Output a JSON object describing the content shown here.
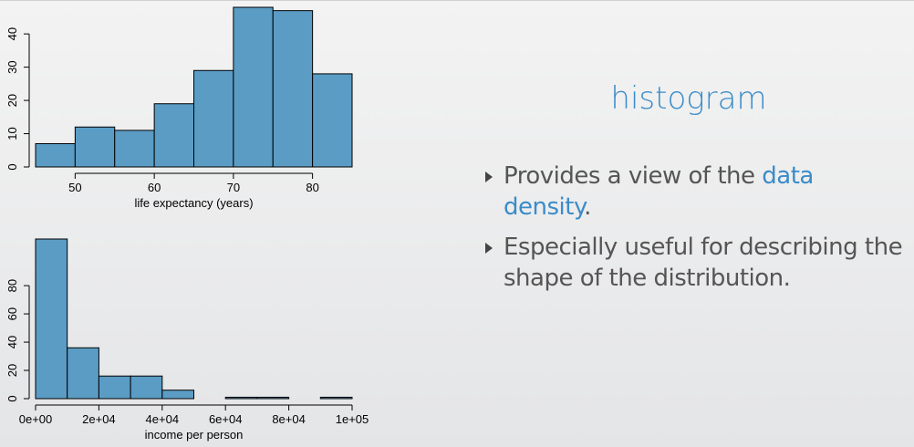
{
  "slide": {
    "title": "histogram",
    "bullets": [
      {
        "pre": "Provides a view of the ",
        "highlight": "data density",
        "post": "."
      },
      {
        "pre": "Especially useful for describing the shape of the distribution.",
        "highlight": "",
        "post": ""
      }
    ],
    "accent_color": "#3a8cc8"
  },
  "chart_data": [
    {
      "type": "bar",
      "xlabel": "life expectancy (years)",
      "ylabel": "",
      "bins": [
        [
          45,
          50
        ],
        [
          50,
          55
        ],
        [
          55,
          60
        ],
        [
          60,
          65
        ],
        [
          65,
          70
        ],
        [
          70,
          75
        ],
        [
          75,
          80
        ],
        [
          80,
          85
        ]
      ],
      "values": [
        7,
        12,
        11,
        19,
        29,
        48,
        47,
        28
      ],
      "xlim": [
        45,
        85
      ],
      "ylim": [
        0,
        48
      ],
      "xticks": [
        50,
        60,
        70,
        80
      ],
      "xtick_labels": [
        "50",
        "60",
        "70",
        "80"
      ],
      "yticks": [
        0,
        10,
        20,
        30,
        40
      ],
      "ytick_labels": [
        "0",
        "10",
        "20",
        "30",
        "40"
      ],
      "bar_color": "#5b9cc4",
      "grid": false
    },
    {
      "type": "bar",
      "xlabel": "income per person",
      "ylabel": "",
      "bins": [
        [
          0,
          10000
        ],
        [
          10000,
          20000
        ],
        [
          20000,
          30000
        ],
        [
          30000,
          40000
        ],
        [
          40000,
          50000
        ],
        [
          50000,
          60000
        ],
        [
          60000,
          70000
        ],
        [
          70000,
          80000
        ],
        [
          80000,
          90000
        ],
        [
          90000,
          100000
        ]
      ],
      "values": [
        113,
        36,
        16,
        16,
        6,
        0,
        1,
        1,
        0,
        1
      ],
      "xlim": [
        0,
        100000
      ],
      "ylim": [
        0,
        113
      ],
      "xticks": [
        0,
        20000,
        40000,
        60000,
        80000,
        100000
      ],
      "xtick_labels": [
        "0e+00",
        "2e+04",
        "4e+04",
        "6e+04",
        "8e+04",
        "1e+05"
      ],
      "yticks": [
        0,
        20,
        40,
        60,
        80
      ],
      "ytick_labels": [
        "0",
        "20",
        "40",
        "60",
        "80"
      ],
      "bar_color": "#5b9cc4",
      "grid": false
    }
  ]
}
